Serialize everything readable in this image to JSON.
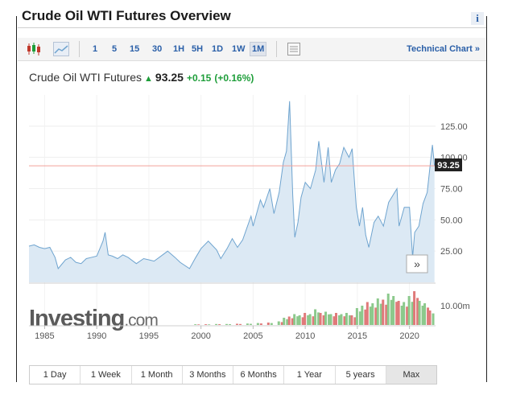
{
  "widget": {
    "title": "Crude Oil WTI Futures Overview",
    "info_label": "i"
  },
  "toolbar": {
    "chart_types": [
      {
        "icon": "candlestick-icon"
      },
      {
        "icon": "area-chart-icon"
      }
    ],
    "timeframes": [
      "1",
      "5",
      "15",
      "30",
      "1H",
      "5H",
      "1D",
      "1W",
      "1M"
    ],
    "active_timeframe": "1M",
    "grid_icon": "table-icon",
    "technical_chart_label": "Technical Chart »"
  },
  "quote": {
    "name": "Crude Oil WTI Futures",
    "direction_icon": "up-arrow-icon",
    "last": "93.25",
    "change": "+0.15",
    "change_pct": "(+0.16%)",
    "up_color": "#1e9e3a"
  },
  "chart_data": {
    "type": "area",
    "title": "",
    "xlabel": "",
    "ylabel": "",
    "x_ticks": [
      "1985",
      "1990",
      "1995",
      "2000",
      "2005",
      "2010",
      "2015",
      "2020"
    ],
    "y_ticks": [
      "25.00",
      "50.00",
      "75.00",
      "100.00",
      "125.00"
    ],
    "ylim": [
      0,
      150
    ],
    "xlim": [
      1983.5,
      2022.5
    ],
    "last_price_label": "93.25",
    "last_price": 93.25,
    "volume_tick": "10.00m",
    "line_color": "#6fa4cf",
    "fill_color": "#dce9f4",
    "last_line_color": "#f2a09a",
    "grid": true,
    "series": [
      {
        "values": [
          [
            1983.5,
            29
          ],
          [
            1984.0,
            30
          ],
          [
            1984.5,
            28
          ],
          [
            1985.0,
            27
          ],
          [
            1985.5,
            28
          ],
          [
            1986.0,
            20
          ],
          [
            1986.3,
            11
          ],
          [
            1986.6,
            14
          ],
          [
            1987.0,
            18
          ],
          [
            1987.5,
            20
          ],
          [
            1988.0,
            16
          ],
          [
            1988.5,
            15
          ],
          [
            1989.0,
            19
          ],
          [
            1989.5,
            20
          ],
          [
            1990.0,
            21
          ],
          [
            1990.6,
            33
          ],
          [
            1990.8,
            40
          ],
          [
            1991.1,
            22
          ],
          [
            1991.5,
            21
          ],
          [
            1992.0,
            19
          ],
          [
            1992.5,
            22
          ],
          [
            1993.0,
            20
          ],
          [
            1993.8,
            15
          ],
          [
            1994.5,
            19
          ],
          [
            1995.0,
            18
          ],
          [
            1995.5,
            17
          ],
          [
            1996.0,
            20
          ],
          [
            1996.8,
            25
          ],
          [
            1997.5,
            20
          ],
          [
            1998.0,
            16
          ],
          [
            1998.9,
            11
          ],
          [
            1999.5,
            20
          ],
          [
            2000.0,
            27
          ],
          [
            2000.7,
            33
          ],
          [
            2001.5,
            26
          ],
          [
            2001.9,
            19
          ],
          [
            2002.5,
            27
          ],
          [
            2003.0,
            35
          ],
          [
            2003.5,
            28
          ],
          [
            2004.0,
            34
          ],
          [
            2004.8,
            53
          ],
          [
            2005.0,
            45
          ],
          [
            2005.7,
            66
          ],
          [
            2006.0,
            60
          ],
          [
            2006.6,
            75
          ],
          [
            2007.0,
            55
          ],
          [
            2007.5,
            72
          ],
          [
            2007.9,
            96
          ],
          [
            2008.2,
            105
          ],
          [
            2008.5,
            145
          ],
          [
            2008.8,
            70
          ],
          [
            2009.0,
            36
          ],
          [
            2009.3,
            48
          ],
          [
            2009.6,
            68
          ],
          [
            2010.0,
            80
          ],
          [
            2010.5,
            75
          ],
          [
            2011.0,
            90
          ],
          [
            2011.3,
            113
          ],
          [
            2011.8,
            80
          ],
          [
            2012.2,
            108
          ],
          [
            2012.5,
            80
          ],
          [
            2012.9,
            90
          ],
          [
            2013.3,
            95
          ],
          [
            2013.7,
            108
          ],
          [
            2014.2,
            100
          ],
          [
            2014.5,
            107
          ],
          [
            2014.9,
            60
          ],
          [
            2015.2,
            45
          ],
          [
            2015.5,
            60
          ],
          [
            2015.8,
            38
          ],
          [
            2016.1,
            28
          ],
          [
            2016.6,
            48
          ],
          [
            2017.0,
            53
          ],
          [
            2017.5,
            45
          ],
          [
            2018.0,
            64
          ],
          [
            2018.8,
            75
          ],
          [
            2019.0,
            45
          ],
          [
            2019.5,
            60
          ],
          [
            2020.0,
            60
          ],
          [
            2020.3,
            20
          ],
          [
            2020.5,
            40
          ],
          [
            2020.9,
            45
          ],
          [
            2021.3,
            63
          ],
          [
            2021.7,
            72
          ],
          [
            2022.0,
            95
          ],
          [
            2022.2,
            110
          ],
          [
            2022.4,
            93
          ]
        ]
      }
    ],
    "volume": [
      [
        1999.5,
        0.3
      ],
      [
        2000.5,
        0.3
      ],
      [
        2001.5,
        0.4
      ],
      [
        2002.5,
        0.4
      ],
      [
        2003.5,
        0.5
      ],
      [
        2004.5,
        0.6
      ],
      [
        2005.5,
        0.8
      ],
      [
        2006.5,
        1.0
      ],
      [
        2007.5,
        1.5
      ],
      [
        2008.0,
        3.0
      ],
      [
        2008.5,
        3.5
      ],
      [
        2009.0,
        4.5
      ],
      [
        2009.5,
        4.0
      ],
      [
        2010.0,
        5.0
      ],
      [
        2010.5,
        4.5
      ],
      [
        2011.0,
        6.5
      ],
      [
        2011.5,
        5.0
      ],
      [
        2012.0,
        5.5
      ],
      [
        2012.5,
        4.5
      ],
      [
        2013.0,
        5.0
      ],
      [
        2013.5,
        4.5
      ],
      [
        2014.0,
        5.0
      ],
      [
        2014.5,
        4.0
      ],
      [
        2015.0,
        7.0
      ],
      [
        2015.5,
        8.0
      ],
      [
        2016.0,
        9.5
      ],
      [
        2016.5,
        9.0
      ],
      [
        2017.0,
        11.0
      ],
      [
        2017.5,
        10.5
      ],
      [
        2018.0,
        13.0
      ],
      [
        2018.5,
        12.0
      ],
      [
        2019.0,
        10.0
      ],
      [
        2019.5,
        9.5
      ],
      [
        2020.0,
        12.0
      ],
      [
        2020.5,
        14.0
      ],
      [
        2021.0,
        10.0
      ],
      [
        2021.5,
        9.0
      ],
      [
        2022.0,
        6.0
      ]
    ]
  },
  "logo": {
    "brand": "Investing",
    "suffix": ".com"
  },
  "nav": {
    "scroll_label": "»"
  },
  "ranges": [
    "1 Day",
    "1 Week",
    "1 Month",
    "3 Months",
    "6 Months",
    "1 Year",
    "5 years",
    "Max"
  ],
  "active_range": "Max"
}
